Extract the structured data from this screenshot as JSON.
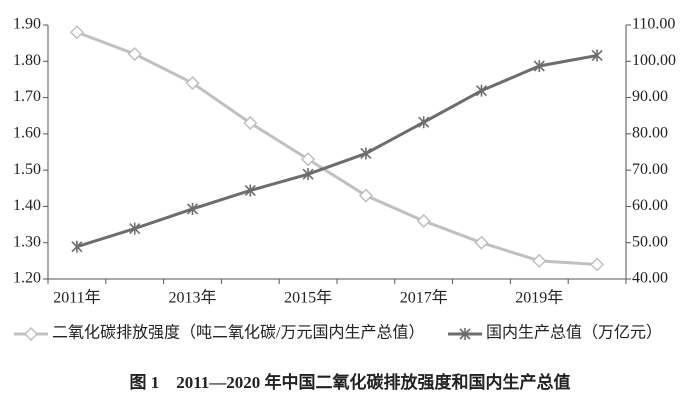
{
  "chart_data": {
    "type": "line",
    "title": "图 1　2011—2020 年中国二氧化碳排放强度和国内生产总值",
    "categories": [
      "2011年",
      null,
      "2013年",
      null,
      "2015年",
      null,
      "2017年",
      null,
      "2019年",
      null
    ],
    "series": [
      {
        "name": "二氧化碳排放强度（吨二氧化碳/万元国内生产总值）",
        "color": "#c0c0c0",
        "marker": "diamond",
        "values": [
          1.88,
          1.82,
          1.74,
          1.63,
          1.53,
          1.43,
          1.36,
          1.3,
          1.25,
          1.24
        ]
      },
      {
        "name": "国内生产总值（万亿元）",
        "color": "#6d6d6d",
        "marker": "asterisk",
        "axis": "y2",
        "values": [
          48.9,
          53.9,
          59.3,
          64.4,
          68.9,
          74.6,
          83.2,
          91.9,
          98.7,
          101.6
        ]
      }
    ],
    "ylim": [
      1.2,
      1.9
    ],
    "yticks": [
      {
        "value": 1.2,
        "label": "1.20"
      },
      {
        "value": 1.3,
        "label": "1.30"
      },
      {
        "value": 1.4,
        "label": "1.40"
      },
      {
        "value": 1.5,
        "label": "1.50"
      },
      {
        "value": 1.6,
        "label": "1.60"
      },
      {
        "value": 1.7,
        "label": "1.70"
      },
      {
        "value": 1.8,
        "label": "1.80"
      },
      {
        "value": 1.9,
        "label": "1.90"
      }
    ],
    "y2lim": [
      40,
      110
    ],
    "y2ticks": [
      {
        "value": 40,
        "label": "40.00"
      },
      {
        "value": 50,
        "label": "50.00"
      },
      {
        "value": 60,
        "label": "60.00"
      },
      {
        "value": 70,
        "label": "70.00"
      },
      {
        "value": 80,
        "label": "80.00"
      },
      {
        "value": 90,
        "label": "90.00"
      },
      {
        "value": 100,
        "label": "100.00"
      },
      {
        "value": 110,
        "label": "110.00"
      }
    ],
    "grid": false,
    "legend": "bottom"
  }
}
